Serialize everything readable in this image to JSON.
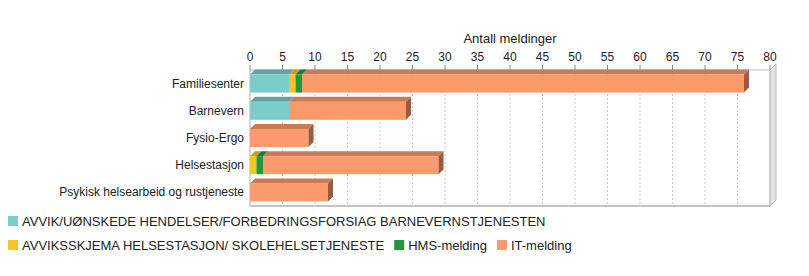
{
  "chart_data": {
    "type": "bar",
    "orientation": "horizontal",
    "stacked": true,
    "grid": true,
    "legend": "bottom",
    "xlabel": "Antall meldinger",
    "categories": [
      "Familiesenter",
      "Barnevern",
      "Fysio-Ergo",
      "Helsestasjon",
      "Psykisk helsearbeid og rustjeneste"
    ],
    "xlim": [
      0,
      80
    ],
    "xticks": [
      0,
      5,
      10,
      15,
      20,
      25,
      30,
      35,
      40,
      45,
      50,
      55,
      60,
      65,
      70,
      75,
      80
    ],
    "series": [
      {
        "name": "AVVIK/UØNSKEDE HENDELSER/FORBEDRINGSFORSIAG BARNEVERNSTJENESTEN",
        "color": "#7ccccc",
        "values": [
          6,
          6,
          0,
          0,
          0
        ]
      },
      {
        "name": "AVVIKSSKJEMA HELSESTASJON/ SKOLEHELSETJENESTE",
        "color": "#f7c623",
        "values": [
          1,
          0,
          0,
          1,
          0
        ]
      },
      {
        "name": "HMS-melding",
        "color": "#1f9a3a",
        "values": [
          1,
          0,
          0,
          1,
          0
        ]
      },
      {
        "name": "IT-melding",
        "color": "#fb9a6c",
        "values": [
          68,
          18,
          9,
          27,
          12
        ]
      }
    ]
  }
}
